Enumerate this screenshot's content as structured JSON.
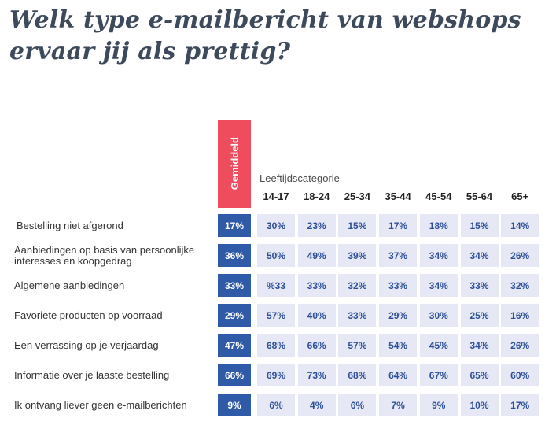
{
  "title_lines": [
    "Welk type e-mailbericht van webshops",
    "ervaar jij als prettig?"
  ],
  "colors": {
    "average": "#2e5aa8",
    "average_header": "#ef4d5e",
    "cell_bg": "#e6e9f5",
    "cell_text": "#2d4f9a"
  },
  "chart_data": {
    "type": "table",
    "average_label": "Gemiddeld",
    "category_title": "Leeftijdscategorie",
    "columns": [
      "14-17",
      "18-24",
      "25-34",
      "35-44",
      "45-54",
      "55-64",
      "65+"
    ],
    "rows": [
      {
        "label": "Bestelling niet afgerond",
        "average": "17%",
        "values": [
          "30%",
          "23%",
          "15%",
          "17%",
          "18%",
          "15%",
          "14%"
        ]
      },
      {
        "label": "Aanbiedingen op basis van persoonlijke interesses en koopgedrag",
        "average": "36%",
        "values": [
          "50%",
          "49%",
          "39%",
          "37%",
          "34%",
          "34%",
          "26%"
        ]
      },
      {
        "label": "Algemene aanbiedingen",
        "average": "33%",
        "values": [
          "%33",
          "33%",
          "32%",
          "33%",
          "34%",
          "33%",
          "32%"
        ]
      },
      {
        "label": "Favoriete producten op voorraad",
        "average": "29%",
        "values": [
          "57%",
          "40%",
          "33%",
          "29%",
          "30%",
          "25%",
          "16%"
        ]
      },
      {
        "label": "Een verrassing op je verjaardag",
        "average": "47%",
        "values": [
          "68%",
          "66%",
          "57%",
          "54%",
          "45%",
          "34%",
          "26%"
        ]
      },
      {
        "label": "Informatie over je laaste bestelling",
        "average": "66%",
        "values": [
          "69%",
          "73%",
          "68%",
          "64%",
          "67%",
          "65%",
          "60%"
        ]
      },
      {
        "label": "Ik ontvang liever geen e-mailberichten",
        "average": "9%",
        "values": [
          "6%",
          "4%",
          "6%",
          "7%",
          "9%",
          "10%",
          "17%"
        ]
      }
    ]
  }
}
